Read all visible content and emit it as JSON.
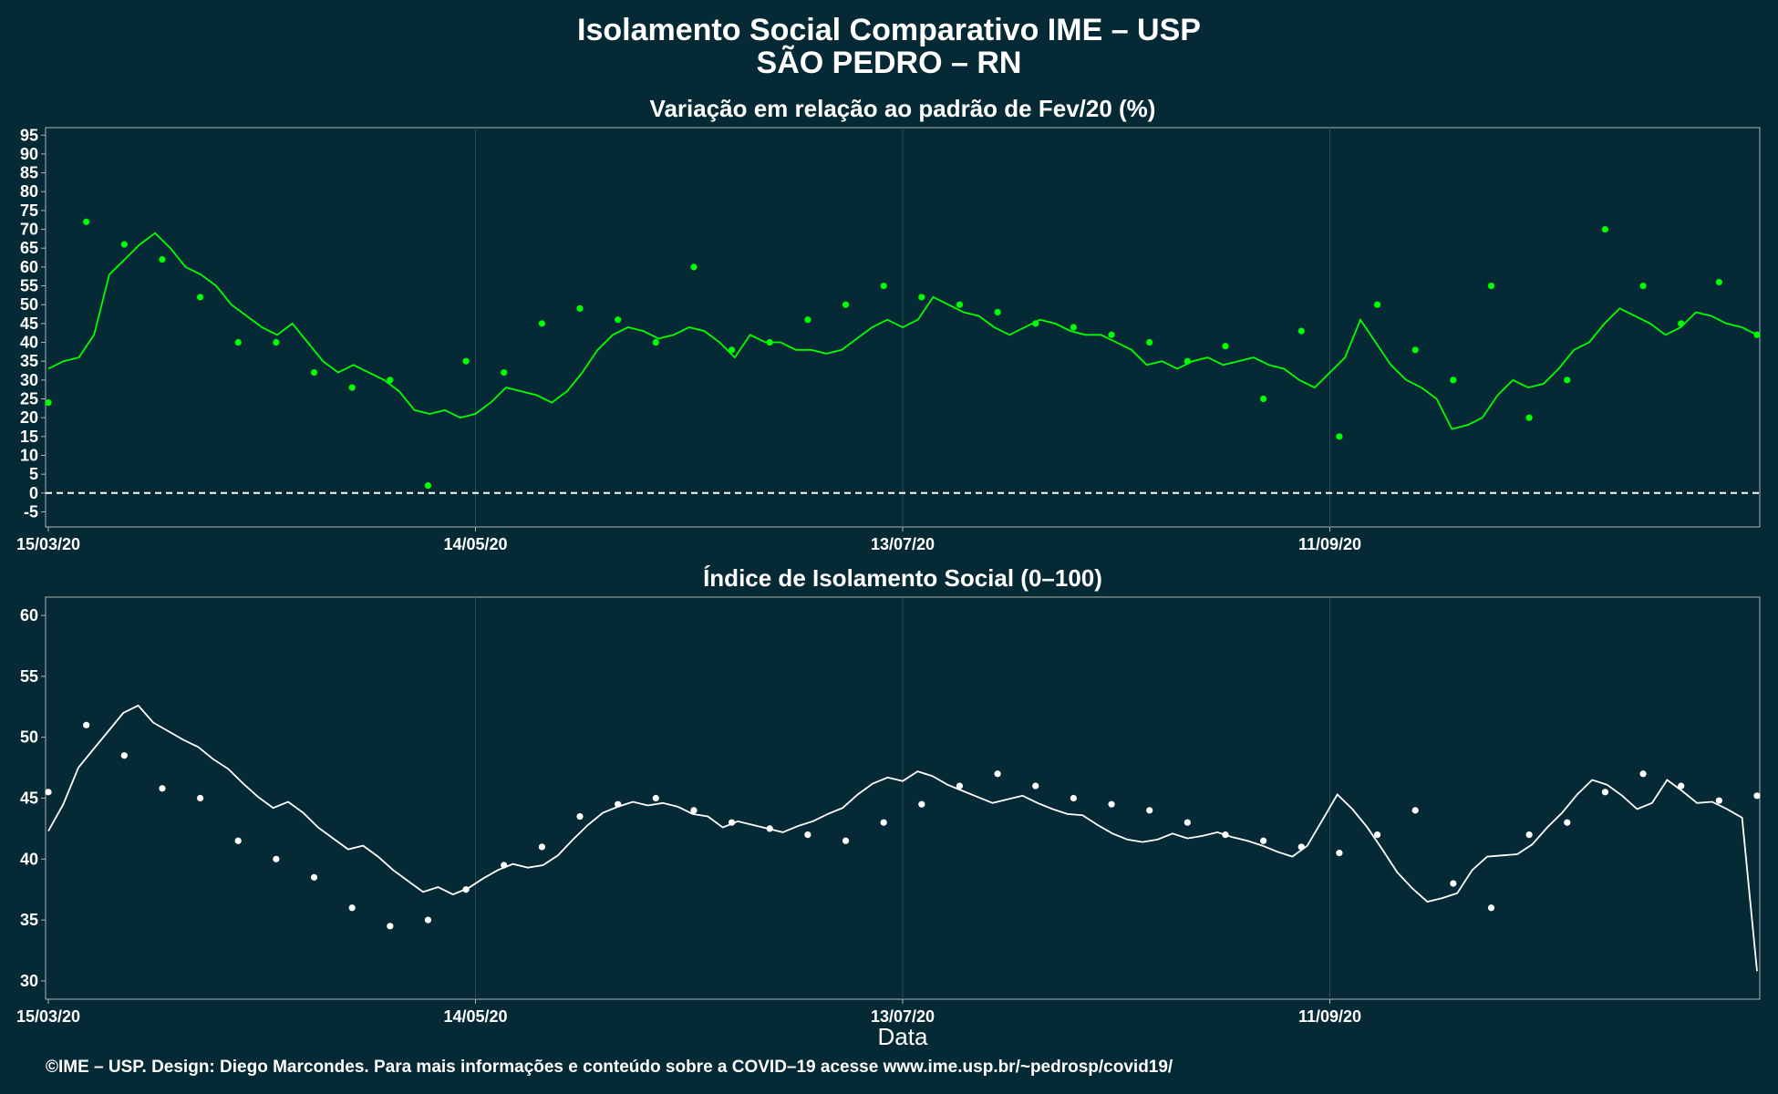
{
  "header": {
    "title_line1": "Isolamento Social Comparativo IME – USP",
    "title_line2": "SÃO PEDRO – RN"
  },
  "footer": "©IME – USP. Design: Diego Marcondes. Para mais informações e conteúdo sobre a COVID–19 acesse www.ime.usp.br/~pedrosp/covid19/",
  "colors": {
    "background": "#052a35",
    "panel_border": "#aab4b8",
    "grid": "#2a4a55",
    "variation_positive": "#00ff00",
    "variation_negative": "#e41a1c",
    "index": "#ffffff",
    "zero_line": "#ffffff"
  },
  "chart_data": [
    {
      "type": "scatter",
      "title": "Variação em relação ao padrão de Fev/20 (%)",
      "xlabel": "",
      "ylabel": "",
      "x_start": "15/03/20",
      "x_end": "25/11/20",
      "x_ticks": [
        "15/03/20",
        "14/05/20",
        "13/07/20",
        "11/09/20"
      ],
      "y_ticks": [
        -5,
        0,
        5,
        10,
        15,
        20,
        25,
        30,
        35,
        40,
        45,
        50,
        55,
        60,
        65,
        70,
        75,
        80,
        85,
        90,
        95
      ],
      "ylim": [
        -9,
        97
      ],
      "grid": true,
      "reference_line": {
        "y": 0,
        "style": "dashed"
      },
      "series": [
        {
          "color_rule": "green if >= 0, red if < 0",
          "points_weekly_sample": [
            24,
            72,
            66,
            62,
            52,
            40,
            40,
            32,
            28,
            30,
            2,
            35,
            32,
            45,
            49,
            46,
            40,
            60,
            38,
            40,
            46,
            50,
            55,
            52,
            50,
            48,
            45,
            44,
            42,
            40,
            35,
            39,
            25,
            43,
            15,
            50,
            38,
            30,
            55,
            20,
            30,
            70,
            55,
            45,
            56,
            42
          ]
        },
        {
          "name": "",
          "style": "line",
          "values": [
            33,
            35,
            36,
            42,
            58,
            62,
            66,
            69,
            65,
            60,
            58,
            55,
            50,
            47,
            44,
            42,
            45,
            40,
            35,
            32,
            34,
            32,
            30,
            27,
            22,
            21,
            22,
            20,
            21,
            24,
            28,
            27,
            26,
            24,
            27,
            32,
            38,
            42,
            44,
            43,
            41,
            42,
            44,
            43,
            40,
            36,
            42,
            40,
            40,
            38,
            38,
            37,
            38,
            41,
            44,
            46,
            44,
            46,
            52,
            50,
            48,
            47,
            44,
            42,
            44,
            46,
            45,
            43,
            42,
            42,
            40,
            38,
            34,
            35,
            33,
            35,
            36,
            34,
            35,
            36,
            34,
            33,
            30,
            28,
            32,
            36,
            46,
            40,
            34,
            30,
            28,
            25,
            17,
            18,
            20,
            26,
            30,
            28,
            29,
            33,
            38,
            40,
            45,
            49,
            47,
            45,
            42,
            44,
            48,
            47,
            45,
            44,
            42
          ]
        }
      ]
    },
    {
      "type": "scatter",
      "title": "Índice de Isolamento Social (0–100)",
      "xlabel": "Data",
      "ylabel": "",
      "x_start": "15/03/20",
      "x_end": "25/11/20",
      "x_ticks": [
        "15/03/20",
        "14/05/20",
        "13/07/20",
        "11/09/20"
      ],
      "y_ticks": [
        30,
        35,
        40,
        45,
        50,
        55,
        60
      ],
      "ylim": [
        28.5,
        61.5
      ],
      "grid": true,
      "series": [
        {
          "name": "",
          "style": "points",
          "points_weekly_sample": [
            45.5,
            51,
            48.5,
            45.8,
            45,
            41.5,
            40,
            38.5,
            36,
            34.5,
            35,
            37.5,
            39.5,
            41,
            43.5,
            44.5,
            45,
            44,
            43,
            42.5,
            42,
            41.5,
            43,
            44.5,
            46,
            47,
            46,
            45,
            44.5,
            44,
            43,
            42,
            41.5,
            41,
            40.5,
            42,
            44,
            38,
            36,
            42,
            43,
            45.5,
            47,
            46,
            44.8,
            45.2
          ]
        },
        {
          "name": "",
          "style": "line",
          "values": [
            42.3,
            44.5,
            47.5,
            49,
            50.5,
            52,
            52.6,
            51.2,
            50.5,
            49.8,
            49.2,
            48.2,
            47.4,
            46.2,
            45.1,
            44.2,
            44.7,
            43.8,
            42.6,
            41.7,
            40.8,
            41.1,
            40.2,
            39.1,
            38.2,
            37.3,
            37.7,
            37.1,
            37.6,
            38.4,
            39.1,
            39.6,
            39.3,
            39.5,
            40.3,
            41.6,
            42.8,
            43.8,
            44.3,
            44.7,
            44.4,
            44.6,
            44.3,
            43.7,
            43.5,
            42.6,
            43.1,
            42.8,
            42.5,
            42.2,
            42.7,
            43.1,
            43.7,
            44.2,
            45.3,
            46.2,
            46.7,
            46.4,
            47.2,
            46.8,
            46.1,
            45.6,
            45.1,
            44.6,
            44.9,
            45.2,
            44.6,
            44.1,
            43.7,
            43.6,
            42.8,
            42.1,
            41.6,
            41.4,
            41.6,
            42.1,
            41.7,
            41.9,
            42.2,
            41.8,
            41.5,
            41.1,
            40.6,
            40.2,
            41.1,
            43.2,
            45.3,
            44.1,
            42.6,
            40.8,
            38.9,
            37.6,
            36.5,
            36.8,
            37.2,
            39.1,
            40.2,
            40.3,
            40.4,
            41.2,
            42.6,
            43.8,
            45.3,
            46.5,
            46.1,
            45.2,
            44.1,
            44.6,
            46.5,
            45.6,
            44.6,
            44.7,
            44.1,
            43.4,
            30.8
          ]
        }
      ]
    }
  ]
}
